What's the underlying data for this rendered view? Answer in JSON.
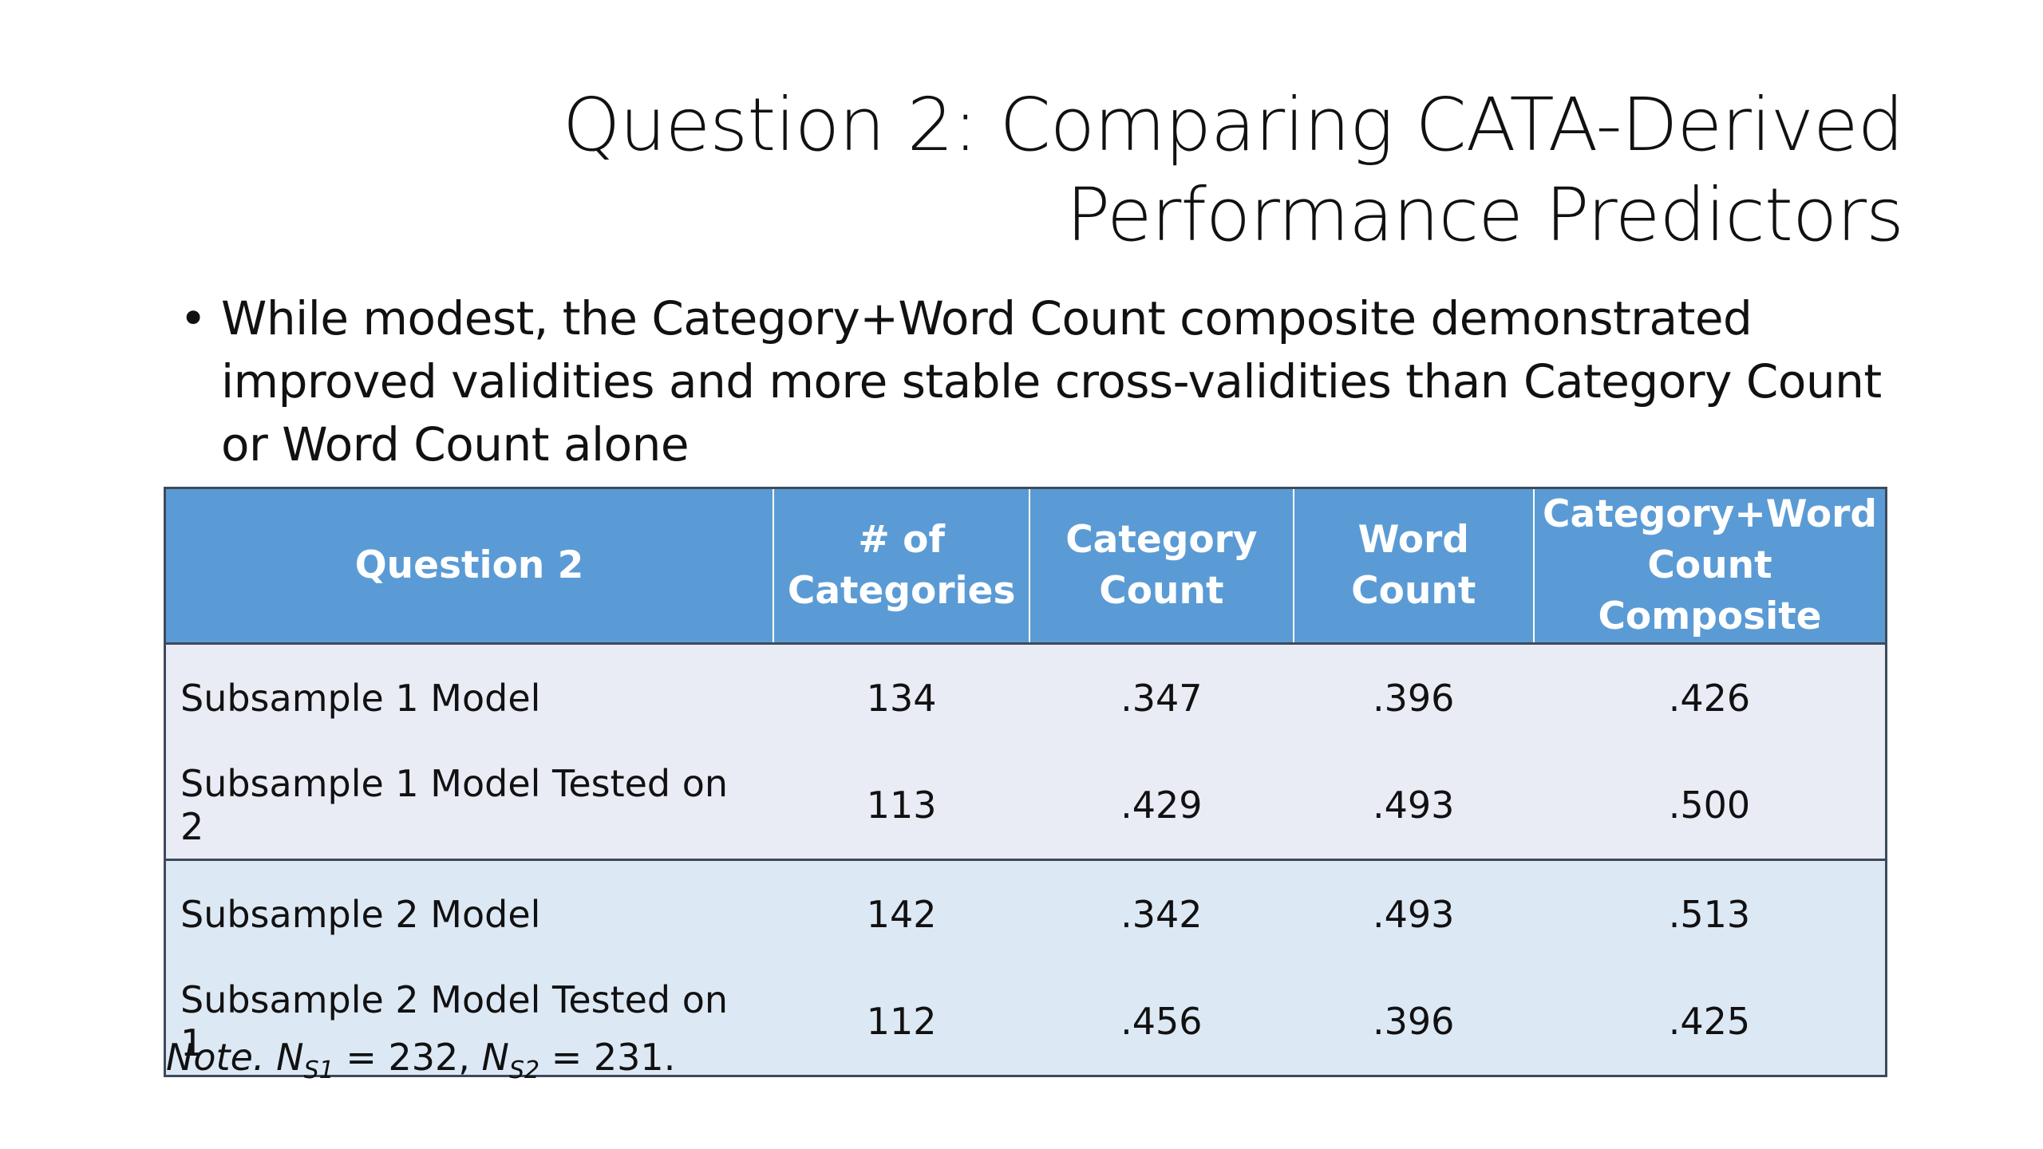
{
  "title": {
    "line1": "Question 2: Comparing CATA-Derived",
    "line2": "Performance Predictors"
  },
  "bullets": [
    "While modest, the Category+Word Count composite demonstrated improved validities and more stable cross-validities than Category Count or Word Count alone"
  ],
  "table": {
    "headers": [
      "Question 2",
      "# of Categories",
      "Category Count",
      "Word Count",
      "Category+Word Count Composite"
    ],
    "rows": [
      [
        "Subsample 1 Model",
        "134",
        ".347",
        ".396",
        ".426"
      ],
      [
        "Subsample 1 Model Tested on 2",
        "113",
        ".429",
        ".493",
        ".500"
      ],
      [
        "Subsample 2 Model",
        "142",
        ".342",
        ".493",
        ".513"
      ],
      [
        "Subsample 2 Model Tested on 1",
        "112",
        ".456",
        ".396",
        ".425"
      ]
    ]
  },
  "note": {
    "label": "Note.",
    "n_symbol": "N",
    "s1_sub": "S1",
    "s1_value": " = 232, ",
    "s2_sub": "S2",
    "s2_value": " = 231."
  },
  "colors": {
    "header_bg": "#5b9bd5",
    "group1_bg": "#e9ebf5",
    "group2_bg": "#dde8f5",
    "border": "#3d4a5c"
  }
}
